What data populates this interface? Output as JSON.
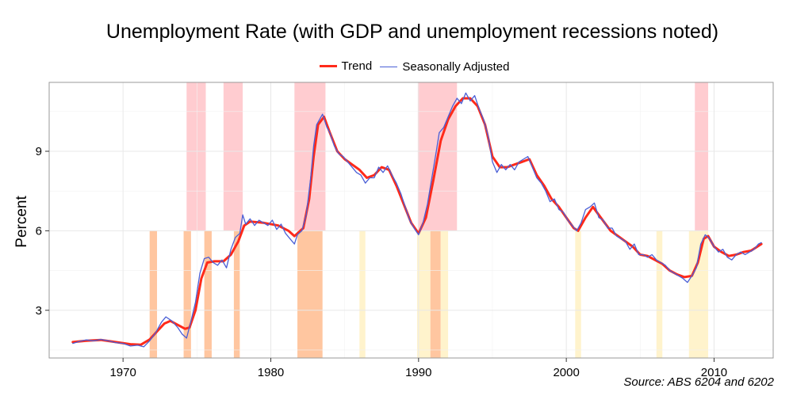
{
  "chart_data": {
    "type": "line",
    "title": "Unemployment Rate (with GDP and unemployment recessions noted)",
    "xlabel": "",
    "ylabel": "Percent",
    "source": "Source: ABS 6204 and 6202",
    "xlim": [
      1965,
      2014
    ],
    "ylim": [
      1.2,
      11.6
    ],
    "x_ticks": [
      1970,
      1980,
      1990,
      2000,
      2010
    ],
    "y_ticks": [
      3,
      6,
      9
    ],
    "grid": true,
    "legend_position": "top",
    "series": [
      {
        "name": "Trend",
        "color": "#ff2a1a",
        "points": [
          [
            1966.6,
            1.8
          ],
          [
            1967.5,
            1.85
          ],
          [
            1968.5,
            1.88
          ],
          [
            1969.5,
            1.8
          ],
          [
            1970.5,
            1.72
          ],
          [
            1971.2,
            1.7
          ],
          [
            1971.8,
            1.9
          ],
          [
            1972.3,
            2.2
          ],
          [
            1972.8,
            2.5
          ],
          [
            1973.2,
            2.6
          ],
          [
            1973.7,
            2.45
          ],
          [
            1974.2,
            2.3
          ],
          [
            1974.5,
            2.35
          ],
          [
            1974.9,
            3.0
          ],
          [
            1975.3,
            4.2
          ],
          [
            1975.7,
            4.8
          ],
          [
            1976.2,
            4.85
          ],
          [
            1976.8,
            4.85
          ],
          [
            1977.3,
            5.1
          ],
          [
            1977.8,
            5.6
          ],
          [
            1978.2,
            6.2
          ],
          [
            1978.6,
            6.35
          ],
          [
            1979.5,
            6.3
          ],
          [
            1980.5,
            6.2
          ],
          [
            1981.2,
            6.0
          ],
          [
            1981.6,
            5.8
          ],
          [
            1982.2,
            6.1
          ],
          [
            1982.6,
            7.2
          ],
          [
            1982.9,
            8.8
          ],
          [
            1983.2,
            10.0
          ],
          [
            1983.6,
            10.3
          ],
          [
            1984.0,
            9.7
          ],
          [
            1984.5,
            9.0
          ],
          [
            1985.0,
            8.7
          ],
          [
            1985.5,
            8.5
          ],
          [
            1986.0,
            8.3
          ],
          [
            1986.5,
            8.0
          ],
          [
            1987.0,
            8.1
          ],
          [
            1987.5,
            8.4
          ],
          [
            1988.0,
            8.3
          ],
          [
            1988.5,
            7.7
          ],
          [
            1989.0,
            7.0
          ],
          [
            1989.5,
            6.3
          ],
          [
            1990.0,
            5.9
          ],
          [
            1990.5,
            6.5
          ],
          [
            1991.0,
            7.9
          ],
          [
            1991.5,
            9.4
          ],
          [
            1992.0,
            10.2
          ],
          [
            1992.5,
            10.7
          ],
          [
            1993.0,
            11.0
          ],
          [
            1993.5,
            11.0
          ],
          [
            1994.0,
            10.7
          ],
          [
            1994.5,
            10.0
          ],
          [
            1995.0,
            8.8
          ],
          [
            1995.5,
            8.4
          ],
          [
            1996.0,
            8.4
          ],
          [
            1996.5,
            8.5
          ],
          [
            1997.0,
            8.6
          ],
          [
            1997.5,
            8.7
          ],
          [
            1998.0,
            8.1
          ],
          [
            1998.5,
            7.7
          ],
          [
            1999.0,
            7.2
          ],
          [
            1999.5,
            6.9
          ],
          [
            2000.0,
            6.5
          ],
          [
            2000.5,
            6.1
          ],
          [
            2000.8,
            6.0
          ],
          [
            2001.3,
            6.5
          ],
          [
            2001.8,
            6.9
          ],
          [
            2002.2,
            6.6
          ],
          [
            2003.0,
            6.0
          ],
          [
            2003.5,
            5.8
          ],
          [
            2004.0,
            5.6
          ],
          [
            2004.5,
            5.4
          ],
          [
            2005.0,
            5.1
          ],
          [
            2005.5,
            5.05
          ],
          [
            2006.0,
            4.9
          ],
          [
            2006.5,
            4.75
          ],
          [
            2007.0,
            4.5
          ],
          [
            2007.5,
            4.35
          ],
          [
            2008.0,
            4.25
          ],
          [
            2008.5,
            4.3
          ],
          [
            2008.9,
            4.8
          ],
          [
            2009.3,
            5.7
          ],
          [
            2009.6,
            5.8
          ],
          [
            2010.0,
            5.4
          ],
          [
            2010.5,
            5.2
          ],
          [
            2011.0,
            5.05
          ],
          [
            2011.5,
            5.1
          ],
          [
            2012.0,
            5.2
          ],
          [
            2012.5,
            5.25
          ],
          [
            2013.2,
            5.5
          ]
        ]
      },
      {
        "name": "Seasonally Adjusted",
        "color": "#4a5fd6",
        "points": [
          [
            1966.6,
            1.75
          ],
          [
            1967.0,
            1.82
          ],
          [
            1967.5,
            1.88
          ],
          [
            1968.0,
            1.85
          ],
          [
            1968.5,
            1.9
          ],
          [
            1969.0,
            1.85
          ],
          [
            1969.5,
            1.78
          ],
          [
            1970.0,
            1.75
          ],
          [
            1970.5,
            1.65
          ],
          [
            1971.0,
            1.68
          ],
          [
            1971.4,
            1.62
          ],
          [
            1971.8,
            1.85
          ],
          [
            1972.2,
            2.15
          ],
          [
            1972.6,
            2.55
          ],
          [
            1972.9,
            2.75
          ],
          [
            1973.3,
            2.6
          ],
          [
            1973.7,
            2.35
          ],
          [
            1974.0,
            2.1
          ],
          [
            1974.3,
            1.95
          ],
          [
            1974.6,
            2.6
          ],
          [
            1974.9,
            3.3
          ],
          [
            1975.2,
            4.4
          ],
          [
            1975.5,
            4.95
          ],
          [
            1975.8,
            5.0
          ],
          [
            1976.1,
            4.8
          ],
          [
            1976.4,
            4.7
          ],
          [
            1976.7,
            4.9
          ],
          [
            1977.0,
            4.6
          ],
          [
            1977.3,
            5.3
          ],
          [
            1977.6,
            5.75
          ],
          [
            1977.9,
            5.9
          ],
          [
            1978.1,
            6.6
          ],
          [
            1978.3,
            6.25
          ],
          [
            1978.6,
            6.45
          ],
          [
            1978.9,
            6.2
          ],
          [
            1979.2,
            6.4
          ],
          [
            1979.5,
            6.3
          ],
          [
            1979.8,
            6.2
          ],
          [
            1980.1,
            6.4
          ],
          [
            1980.4,
            6.05
          ],
          [
            1980.7,
            6.25
          ],
          [
            1981.0,
            5.9
          ],
          [
            1981.3,
            5.7
          ],
          [
            1981.6,
            5.5
          ],
          [
            1981.8,
            5.85
          ],
          [
            1982.1,
            6.0
          ],
          [
            1982.4,
            6.6
          ],
          [
            1982.7,
            8.0
          ],
          [
            1982.9,
            9.2
          ],
          [
            1983.1,
            10.0
          ],
          [
            1983.3,
            10.2
          ],
          [
            1983.5,
            10.4
          ],
          [
            1983.8,
            9.9
          ],
          [
            1984.0,
            9.7
          ],
          [
            1984.3,
            9.2
          ],
          [
            1984.6,
            8.9
          ],
          [
            1984.9,
            8.8
          ],
          [
            1985.2,
            8.6
          ],
          [
            1985.5,
            8.4
          ],
          [
            1985.8,
            8.2
          ],
          [
            1986.1,
            8.1
          ],
          [
            1986.4,
            7.8
          ],
          [
            1986.7,
            8.0
          ],
          [
            1987.0,
            8.0
          ],
          [
            1987.3,
            8.4
          ],
          [
            1987.6,
            8.2
          ],
          [
            1987.9,
            8.45
          ],
          [
            1988.2,
            8.1
          ],
          [
            1988.5,
            7.8
          ],
          [
            1988.8,
            7.4
          ],
          [
            1989.1,
            6.9
          ],
          [
            1989.4,
            6.4
          ],
          [
            1989.7,
            6.1
          ],
          [
            1990.0,
            5.85
          ],
          [
            1990.3,
            6.3
          ],
          [
            1990.6,
            7.0
          ],
          [
            1990.9,
            8.0
          ],
          [
            1991.2,
            9.0
          ],
          [
            1991.4,
            9.7
          ],
          [
            1991.7,
            9.9
          ],
          [
            1992.0,
            10.3
          ],
          [
            1992.3,
            10.7
          ],
          [
            1992.6,
            11.0
          ],
          [
            1992.9,
            10.8
          ],
          [
            1993.2,
            11.2
          ],
          [
            1993.5,
            10.9
          ],
          [
            1993.8,
            11.1
          ],
          [
            1994.1,
            10.6
          ],
          [
            1994.4,
            10.2
          ],
          [
            1994.7,
            9.6
          ],
          [
            1995.0,
            8.6
          ],
          [
            1995.3,
            8.2
          ],
          [
            1995.6,
            8.5
          ],
          [
            1995.9,
            8.3
          ],
          [
            1996.2,
            8.5
          ],
          [
            1996.5,
            8.3
          ],
          [
            1996.8,
            8.6
          ],
          [
            1997.1,
            8.7
          ],
          [
            1997.4,
            8.8
          ],
          [
            1997.7,
            8.4
          ],
          [
            1998.0,
            8.0
          ],
          [
            1998.3,
            7.8
          ],
          [
            1998.6,
            7.5
          ],
          [
            1998.9,
            7.1
          ],
          [
            1999.2,
            7.2
          ],
          [
            1999.5,
            6.8
          ],
          [
            1999.8,
            6.7
          ],
          [
            2000.1,
            6.4
          ],
          [
            2000.4,
            6.2
          ],
          [
            2000.7,
            6.0
          ],
          [
            2001.0,
            6.3
          ],
          [
            2001.3,
            6.8
          ],
          [
            2001.6,
            6.9
          ],
          [
            2001.9,
            7.05
          ],
          [
            2002.2,
            6.5
          ],
          [
            2002.5,
            6.4
          ],
          [
            2002.8,
            6.1
          ],
          [
            2003.1,
            6.1
          ],
          [
            2003.4,
            5.8
          ],
          [
            2003.7,
            5.7
          ],
          [
            2004.0,
            5.6
          ],
          [
            2004.3,
            5.3
          ],
          [
            2004.6,
            5.5
          ],
          [
            2004.9,
            5.1
          ],
          [
            2005.2,
            5.1
          ],
          [
            2005.5,
            5.0
          ],
          [
            2005.8,
            5.1
          ],
          [
            2006.1,
            4.9
          ],
          [
            2006.4,
            4.8
          ],
          [
            2006.7,
            4.7
          ],
          [
            2007.0,
            4.5
          ],
          [
            2007.3,
            4.4
          ],
          [
            2007.6,
            4.3
          ],
          [
            2007.9,
            4.2
          ],
          [
            2008.2,
            4.05
          ],
          [
            2008.5,
            4.3
          ],
          [
            2008.8,
            4.6
          ],
          [
            2009.1,
            5.5
          ],
          [
            2009.4,
            5.85
          ],
          [
            2009.7,
            5.7
          ],
          [
            2010.0,
            5.4
          ],
          [
            2010.3,
            5.2
          ],
          [
            2010.6,
            5.3
          ],
          [
            2010.9,
            5.0
          ],
          [
            2011.2,
            4.9
          ],
          [
            2011.5,
            5.1
          ],
          [
            2011.8,
            5.2
          ],
          [
            2012.1,
            5.1
          ],
          [
            2012.4,
            5.2
          ],
          [
            2012.7,
            5.3
          ],
          [
            2013.0,
            5.5
          ],
          [
            2013.2,
            5.55
          ]
        ]
      }
    ],
    "gdp_recessions": [
      [
        1974.3,
        1975.6
      ],
      [
        1976.8,
        1978.1
      ],
      [
        1981.6,
        1983.7
      ],
      [
        1989.95,
        1992.6
      ],
      [
        2008.7,
        2009.6
      ]
    ],
    "unemployment_recessions": [
      {
        "start": 1971.8,
        "end": 1972.3,
        "kind": "orange"
      },
      {
        "start": 1974.1,
        "end": 1974.6,
        "kind": "orange"
      },
      {
        "start": 1975.5,
        "end": 1976.0,
        "kind": "orange"
      },
      {
        "start": 1977.5,
        "end": 1977.9,
        "kind": "orange"
      },
      {
        "start": 1981.8,
        "end": 1983.5,
        "kind": "orange"
      },
      {
        "start": 1986.0,
        "end": 1986.4,
        "kind": "yellow"
      },
      {
        "start": 1989.9,
        "end": 1990.8,
        "kind": "yellow"
      },
      {
        "start": 1990.8,
        "end": 1991.5,
        "kind": "orange"
      },
      {
        "start": 1991.5,
        "end": 1992.0,
        "kind": "yellow"
      },
      {
        "start": 2000.6,
        "end": 2001.0,
        "kind": "yellow"
      },
      {
        "start": 2006.1,
        "end": 2006.5,
        "kind": "yellow"
      },
      {
        "start": 2008.3,
        "end": 2009.6,
        "kind": "yellow"
      }
    ],
    "colors": {
      "gdp_recession": "#ffccd0",
      "unemp_orange": "#ffc6a0",
      "unemp_yellow": "#fff3cc",
      "grid": "#e8e8e8",
      "panel_border": "#999999"
    }
  }
}
